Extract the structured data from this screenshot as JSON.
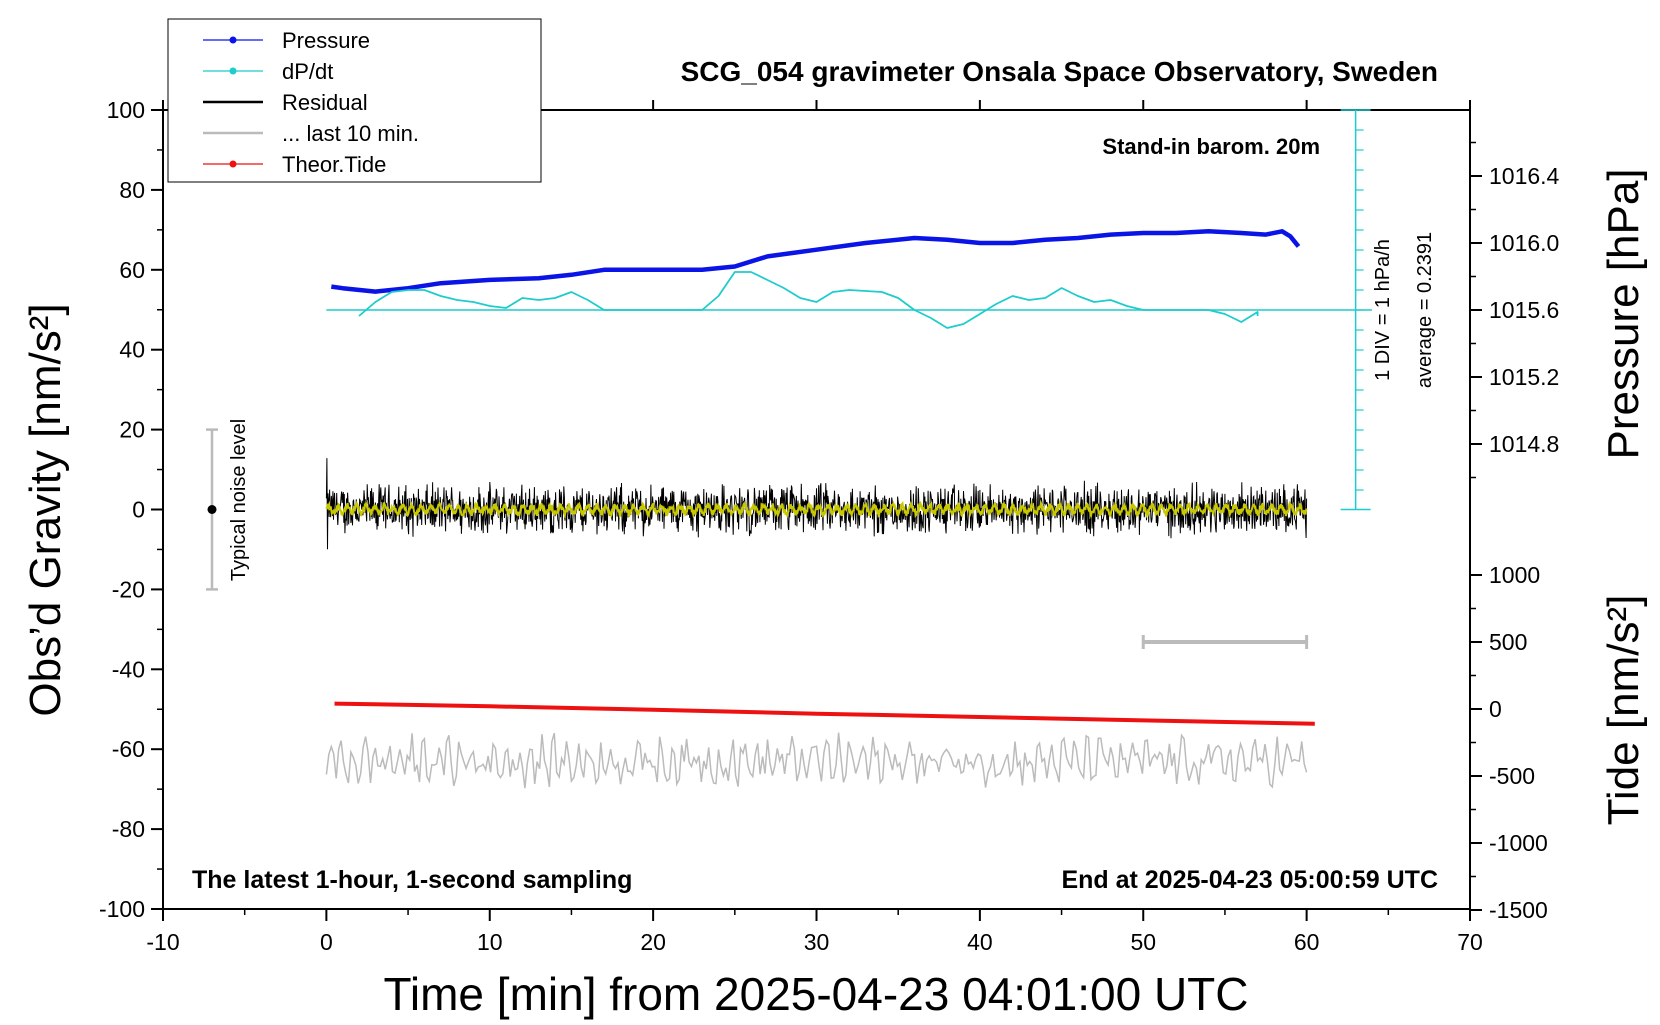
{
  "chart_data": {
    "type": "line",
    "title": "SCG_054 gravimeter Onsala Space Observatory, Sweden",
    "xlabel": "Time [min] from 2025-04-23 04:01:00 UTC",
    "ylabel_left": "Obs’d Gravity [nm/s²]",
    "ylabel_right_top": "Pressure [hPa]",
    "ylabel_right_bottom": "Tide [nm/s²]",
    "xlim": [
      -10,
      70
    ],
    "ylim": [
      -100,
      100
    ],
    "x_ticks": [
      "-10",
      "0",
      "10",
      "20",
      "30",
      "40",
      "50",
      "60",
      "70"
    ],
    "y_ticks": [
      "100",
      "80",
      "60",
      "40",
      "20",
      "0",
      "-20",
      "-40",
      "-60",
      "-80",
      "-100"
    ],
    "pressure_ticks": [
      "1016.4",
      "1016.0",
      "1015.6",
      "1015.2",
      "1014.8"
    ],
    "tide_ticks": [
      "1000",
      "500",
      "0",
      "-500",
      "-1000",
      "-1500"
    ],
    "grid": false,
    "legend_position": "top-left",
    "legend": [
      "Pressure",
      "dP/dt",
      "Residual",
      "... last 10 min.",
      "Theor.Tide"
    ],
    "annotations": {
      "barometer": "Stand-in barom. 20m",
      "dpdt_scale": "1 DIV = 1 hPa/h",
      "dpdt_average": "average = 0.2391",
      "noise_label": "Typical noise level",
      "footer_left": "The latest 1-hour, 1-second sampling",
      "footer_right": "End at 2025-04-23 05:00:59 UTC"
    },
    "noise_bar": {
      "x": -7,
      "y_low": -20,
      "y_high": 20,
      "y_center": 0
    },
    "last10_bracket": {
      "x_start": 50,
      "x_end": 60,
      "tide": 500
    },
    "series": [
      {
        "name": "Pressure",
        "color": "#0a14e6",
        "axis": "pressure_hPa",
        "points": [
          [
            0.3,
            1015.74
          ],
          [
            1,
            1015.73
          ],
          [
            3,
            1015.71
          ],
          [
            5,
            1015.73
          ],
          [
            7,
            1015.76
          ],
          [
            10,
            1015.78
          ],
          [
            13,
            1015.79
          ],
          [
            15,
            1015.81
          ],
          [
            17,
            1015.84
          ],
          [
            20,
            1015.84
          ],
          [
            23,
            1015.84
          ],
          [
            25,
            1015.86
          ],
          [
            27,
            1015.92
          ],
          [
            30,
            1015.96
          ],
          [
            33,
            1016.0
          ],
          [
            36,
            1016.03
          ],
          [
            38,
            1016.02
          ],
          [
            40,
            1016.0
          ],
          [
            42,
            1016.0
          ],
          [
            44,
            1016.02
          ],
          [
            46,
            1016.03
          ],
          [
            48,
            1016.05
          ],
          [
            50,
            1016.06
          ],
          [
            52,
            1016.06
          ],
          [
            54,
            1016.07
          ],
          [
            56,
            1016.06
          ],
          [
            57.5,
            1016.05
          ],
          [
            58.5,
            1016.07
          ],
          [
            59,
            1016.04
          ],
          [
            59.5,
            1015.98
          ]
        ]
      },
      {
        "name": "dP/dt",
        "color": "#1ecccc",
        "axis": "dpdt_hPa_per_h",
        "baseline_pressure": 1015.6,
        "points": [
          [
            2,
            -0.3
          ],
          [
            3,
            0.4
          ],
          [
            4,
            0.9
          ],
          [
            5,
            1.0
          ],
          [
            6,
            1.0
          ],
          [
            7,
            0.7
          ],
          [
            8,
            0.5
          ],
          [
            9,
            0.4
          ],
          [
            10,
            0.2
          ],
          [
            11,
            0.1
          ],
          [
            12,
            0.6
          ],
          [
            13,
            0.5
          ],
          [
            14,
            0.6
          ],
          [
            15,
            0.9
          ],
          [
            16,
            0.5
          ],
          [
            17,
            0.0
          ],
          [
            18,
            0.0
          ],
          [
            20,
            0.0
          ],
          [
            22,
            0.0
          ],
          [
            23,
            0.0
          ],
          [
            24,
            0.7
          ],
          [
            25,
            1.9
          ],
          [
            26,
            1.9
          ],
          [
            27,
            1.5
          ],
          [
            28,
            1.1
          ],
          [
            29,
            0.6
          ],
          [
            30,
            0.4
          ],
          [
            31,
            0.9
          ],
          [
            32,
            1.0
          ],
          [
            34,
            0.9
          ],
          [
            35,
            0.6
          ],
          [
            36,
            0.0
          ],
          [
            37,
            -0.4
          ],
          [
            38,
            -0.9
          ],
          [
            39,
            -0.7
          ],
          [
            40,
            -0.2
          ],
          [
            41,
            0.3
          ],
          [
            42,
            0.7
          ],
          [
            43,
            0.5
          ],
          [
            44,
            0.6
          ],
          [
            45,
            1.1
          ],
          [
            46,
            0.7
          ],
          [
            47,
            0.4
          ],
          [
            48,
            0.5
          ],
          [
            49,
            0.2
          ],
          [
            50,
            0.0
          ],
          [
            52,
            0.0
          ],
          [
            54,
            0.0
          ],
          [
            55,
            -0.2
          ],
          [
            56,
            -0.6
          ],
          [
            57,
            -0.1
          ],
          [
            57,
            -0.3
          ]
        ]
      },
      {
        "name": "Residual",
        "color": "#000000",
        "axis": "gravity_nm_s2",
        "x_range": [
          0,
          60
        ],
        "amplitude": 5,
        "noise": "high-frequency"
      },
      {
        "name": "Residual smoothed",
        "color": "#c8c800",
        "axis": "gravity_nm_s2",
        "x_range": [
          0,
          60
        ],
        "amplitude": 1.5
      },
      {
        "name": "Theor.Tide",
        "color": "#ee1111",
        "axis": "tide_nm_s2",
        "points": [
          [
            0.5,
            40
          ],
          [
            10,
            20
          ],
          [
            20,
            -5
          ],
          [
            30,
            -35
          ],
          [
            40,
            -60
          ],
          [
            50,
            -85
          ],
          [
            60.5,
            -110
          ]
        ]
      },
      {
        "name": "... last 10 min.",
        "color": "#bbbbbb",
        "axis": "gravity_nm_s2",
        "x_range": [
          0,
          60
        ],
        "center": -63,
        "amplitude": 6
      }
    ]
  }
}
